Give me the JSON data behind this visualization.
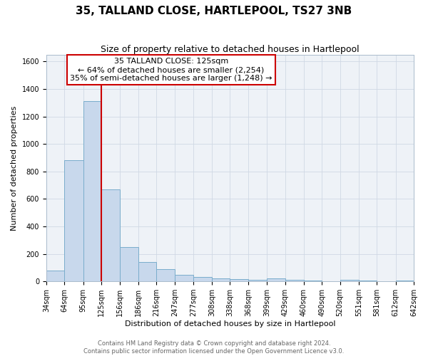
{
  "title": "35, TALLAND CLOSE, HARTLEPOOL, TS27 3NB",
  "subtitle": "Size of property relative to detached houses in Hartlepool",
  "xlabel": "Distribution of detached houses by size in Hartlepool",
  "ylabel": "Number of detached properties",
  "bin_edges": [
    34,
    64,
    95,
    125,
    156,
    186,
    216,
    247,
    277,
    308,
    338,
    368,
    399,
    429,
    460,
    490,
    520,
    551,
    581,
    612,
    642
  ],
  "bin_labels": [
    "34sqm",
    "64sqm",
    "95sqm",
    "125sqm",
    "156sqm",
    "186sqm",
    "216sqm",
    "247sqm",
    "277sqm",
    "308sqm",
    "338sqm",
    "368sqm",
    "399sqm",
    "429sqm",
    "460sqm",
    "490sqm",
    "520sqm",
    "551sqm",
    "581sqm",
    "612sqm",
    "642sqm"
  ],
  "counts": [
    80,
    880,
    1310,
    670,
    250,
    140,
    90,
    50,
    30,
    20,
    15,
    10,
    20,
    10,
    5,
    0,
    10,
    5,
    0,
    5
  ],
  "bar_color": "#c8d8ec",
  "bar_edge_color": "#7aadcc",
  "vline_x": 125,
  "vline_color": "#cc0000",
  "annotation_title": "35 TALLAND CLOSE: 125sqm",
  "annotation_line1": "← 64% of detached houses are smaller (2,254)",
  "annotation_line2": "35% of semi-detached houses are larger (1,248) →",
  "annotation_box_facecolor": "#ffffff",
  "annotation_box_edgecolor": "#cc0000",
  "ylim": [
    0,
    1650
  ],
  "yticks": [
    0,
    200,
    400,
    600,
    800,
    1000,
    1200,
    1400,
    1600
  ],
  "plot_bg_color": "#eef2f7",
  "fig_bg_color": "#ffffff",
  "grid_color": "#d0d8e4",
  "footer1": "Contains HM Land Registry data © Crown copyright and database right 2024.",
  "footer2": "Contains public sector information licensed under the Open Government Licence v3.0.",
  "title_fontsize": 11,
  "subtitle_fontsize": 9,
  "axis_label_fontsize": 8,
  "tick_fontsize": 7,
  "annotation_fontsize": 8,
  "footer_fontsize": 6
}
